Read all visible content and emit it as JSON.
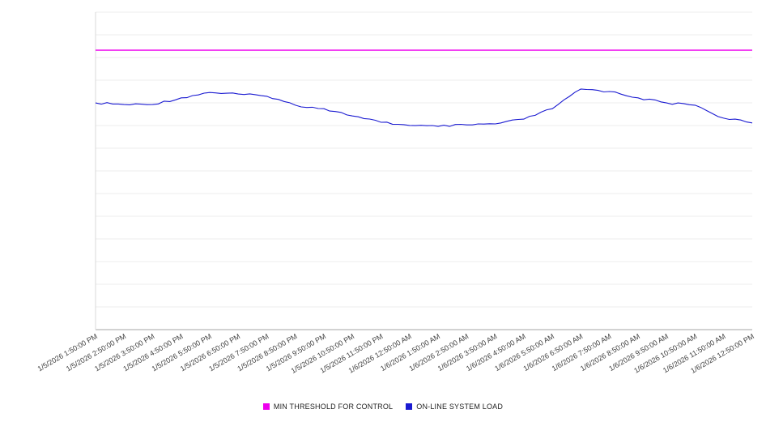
{
  "chart_data": {
    "type": "line",
    "title": "",
    "xlabel": "",
    "ylabel": "",
    "ylim": [
      0,
      100
    ],
    "y_axis_tick_labels_visible": false,
    "grid": "horizontal",
    "legend_position": "bottom-center",
    "x_labels": [
      "1/5/2026 1:50:00 PM",
      "1/5/2026 2:50:00 PM",
      "1/5/2026 3:50:00 PM",
      "1/5/2026 4:50:00 PM",
      "1/5/2026 5:50:00 PM",
      "1/5/2026 6:50:00 PM",
      "1/5/2026 7:50:00 PM",
      "1/5/2026 8:50:00 PM",
      "1/5/2026 9:50:00 PM",
      "1/5/2026 10:50:00 PM",
      "1/5/2026 11:50:00 PM",
      "1/6/2026 12:50:00 AM",
      "1/6/2026 1:50:00 AM",
      "1/6/2026 2:50:00 AM",
      "1/6/2026 3:50:00 AM",
      "1/6/2026 4:50:00 AM",
      "1/6/2026 5:50:00 AM",
      "1/6/2026 6:50:00 AM",
      "1/6/2026 7:50:00 AM",
      "1/6/2026 8:50:00 AM",
      "1/6/2026 9:50:00 AM",
      "1/6/2026 10:50:00 AM",
      "1/6/2026 11:50:00 AM",
      "1/6/2026 12:50:00 PM"
    ],
    "series": [
      {
        "name": "MIN THRESHOLD FOR CONTROL",
        "color": "#ee00ee",
        "style": "horizontal-threshold",
        "value": 88.0
      },
      {
        "name": "ON-LINE SYSTEM LOAD",
        "color": "#1a1ad1",
        "style": "line",
        "values": [
          71.4,
          70.9,
          70.9,
          73.0,
          74.7,
          74.2,
          73.5,
          70.7,
          69.6,
          67.3,
          65.3,
          64.3,
          64.0,
          64.5,
          64.8,
          66.3,
          69.6,
          75.8,
          75.0,
          73.0,
          71.4,
          70.7,
          66.6,
          65.1
        ]
      }
    ]
  }
}
